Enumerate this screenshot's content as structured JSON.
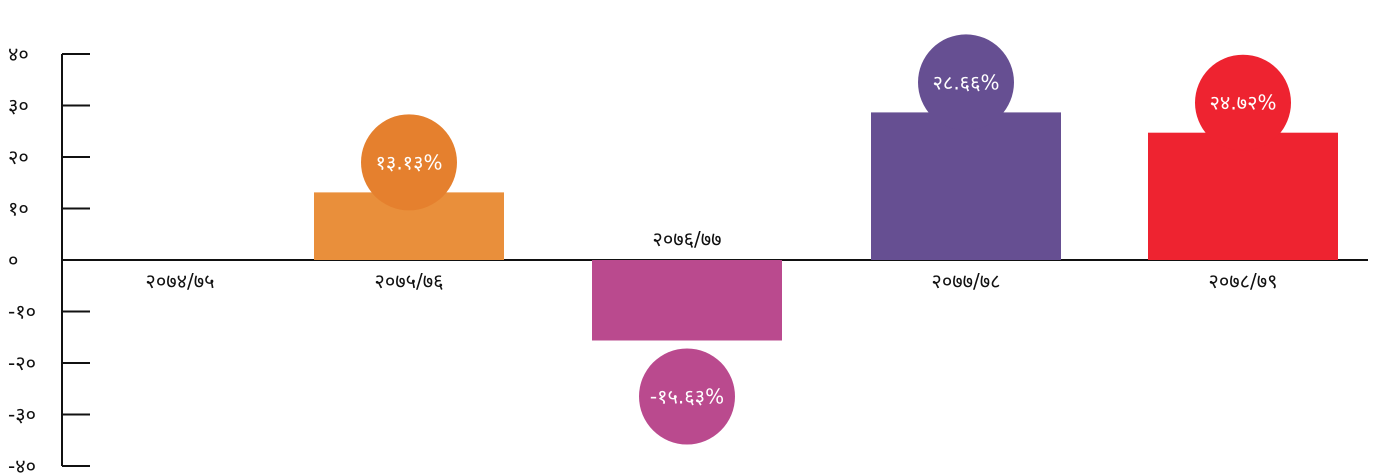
{
  "chart_data": {
    "type": "bar",
    "categories": [
      "२०७४/७५",
      "२०७५/७६",
      "२०७६/७७",
      "२०७७/७८",
      "२०७८/७९"
    ],
    "values": [
      0,
      13.13,
      -15.63,
      28.66,
      24.72
    ],
    "data_labels": [
      "",
      "१३.१३%",
      "-१५.६३%",
      "२८.६६%",
      "२४.७२%"
    ],
    "colors": [
      "#ffffff",
      "#E98F3B",
      "#BA4A8E",
      "#664F92",
      "#EE2330"
    ],
    "bubble_colors": [
      "#ffffff",
      "#E5802E",
      "#BA4A8E",
      "#664F92",
      "#EE2330"
    ],
    "ylim": [
      -40,
      40
    ],
    "yticks": [
      40,
      30,
      20,
      10,
      0,
      -10,
      -20,
      -30,
      -40
    ],
    "ytick_labels": [
      "४०",
      "३०",
      "२०",
      "१०",
      "०",
      "-१०",
      "-२०",
      "-३०",
      "-४०"
    ],
    "label_above_bar": [
      false,
      false,
      true,
      false,
      false
    ],
    "title": "",
    "xlabel": "",
    "ylabel": "",
    "grid": false,
    "legend": "none"
  }
}
